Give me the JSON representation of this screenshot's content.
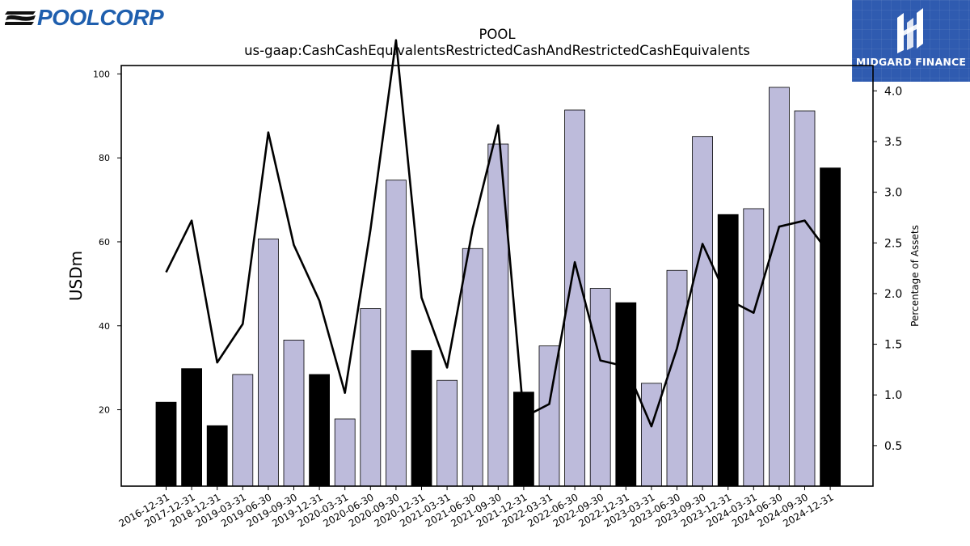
{
  "logos": {
    "left_brand": "POOLCORP",
    "right_brand": "MIDGARD FINANCE"
  },
  "colors": {
    "bar_light": "#bdbbdb",
    "bar_dark": "#000000",
    "line": "#000000",
    "poolcorp_blue": "#1f5fae",
    "midgard_bg": "#2f5bb0"
  },
  "chart_data": {
    "type": "bar",
    "title": "POOL",
    "subtitle": "us-gaap:CashCashEquivalentsRestrictedCashAndRestrictedCashEquivalents",
    "ylabel": "USDm",
    "ylabel_right": "Percentage of Assets",
    "ylim": [
      1.8,
      102
    ],
    "ylim_right": [
      0.1,
      4.25
    ],
    "yticks": [
      20,
      40,
      60,
      80,
      100
    ],
    "yticks_right": [
      0.5,
      1.0,
      1.5,
      2.0,
      2.5,
      3.0,
      3.5,
      4.0
    ],
    "categories": [
      "2016-12-31",
      "2017-12-31",
      "2018-12-31",
      "2019-03-31",
      "2019-06-30",
      "2019-09-30",
      "2019-12-31",
      "2020-03-31",
      "2020-06-30",
      "2020-09-30",
      "2020-12-31",
      "2021-03-31",
      "2021-06-30",
      "2021-09-30",
      "2021-12-31",
      "2022-03-31",
      "2022-06-30",
      "2022-09-30",
      "2022-12-31",
      "2023-03-31",
      "2023-06-30",
      "2023-09-30",
      "2023-12-31",
      "2024-03-31",
      "2024-06-30",
      "2024-09-30",
      "2024-12-31"
    ],
    "series": [
      {
        "values": [
          21.8,
          29.8,
          16.2,
          28.4,
          60.7,
          36.6,
          28.4,
          17.8,
          44.1,
          74.7,
          34.1,
          27.0,
          58.4,
          83.3,
          24.2,
          35.2,
          91.4,
          48.9,
          45.5,
          26.3,
          53.2,
          85.1,
          66.5,
          67.9,
          96.8,
          91.2,
          77.6
        ],
        "highlight": [
          true,
          true,
          true,
          false,
          false,
          false,
          true,
          false,
          false,
          false,
          true,
          false,
          false,
          false,
          true,
          false,
          false,
          false,
          true,
          false,
          false,
          false,
          true,
          false,
          false,
          false,
          true
        ]
      },
      {
        "values": [
          2.21,
          2.72,
          1.32,
          1.7,
          3.59,
          2.48,
          1.93,
          1.02,
          2.63,
          4.5,
          1.96,
          1.27,
          2.64,
          3.66,
          0.78,
          0.91,
          2.31,
          1.34,
          1.28,
          0.69,
          1.46,
          2.49,
          1.94,
          1.81,
          2.66,
          2.72,
          2.38
        ]
      }
    ]
  }
}
